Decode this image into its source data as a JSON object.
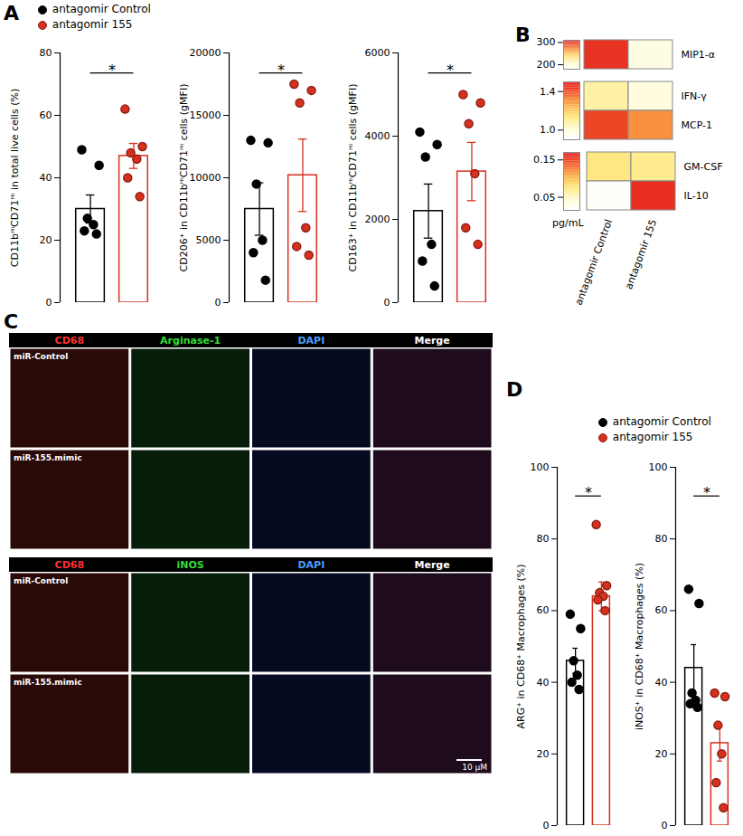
{
  "panel_labels": [
    "A",
    "B",
    "C",
    "D"
  ],
  "chart_data": [
    {
      "type": "bar",
      "ylabel": "CD11bᴴⁱCD71ᴴⁱ in total live cells (%)",
      "ylim": [
        0,
        80
      ],
      "yticks": [
        0,
        20,
        40,
        60,
        80
      ],
      "annotation": "*",
      "legend": "top-left",
      "series": [
        {
          "name": "antagomir Control",
          "color": "#000000",
          "values": [
            30
          ],
          "error": [
            4.5
          ],
          "points": [
            49,
            44,
            27,
            25,
            23,
            22
          ]
        },
        {
          "name": "antagomir 155",
          "color": "#d7301f",
          "values": [
            47
          ],
          "error": [
            4
          ],
          "points": [
            62,
            50,
            48,
            46,
            40,
            34
          ]
        }
      ]
    },
    {
      "type": "bar",
      "ylabel": "CD206⁺ in CD11bᴴⁱCD71ᴴⁱ cells (gMFI)",
      "ylim": [
        0,
        20000
      ],
      "yticks": [
        0,
        5000,
        10000,
        15000,
        20000
      ],
      "annotation": "*",
      "series": [
        {
          "name": "antagomir Control",
          "color": "#000000",
          "values": [
            7500
          ],
          "error": [
            2100
          ],
          "points": [
            13000,
            12800,
            9500,
            5000,
            4000,
            1800
          ]
        },
        {
          "name": "antagomir 155",
          "color": "#d7301f",
          "values": [
            10200
          ],
          "error": [
            2900
          ],
          "points": [
            17500,
            17000,
            16000,
            6000,
            4500,
            3800
          ]
        }
      ]
    },
    {
      "type": "bar",
      "ylabel": "CD163⁺ in CD11bᴴⁱCD71ᴴⁱ cells (gMFI)",
      "ylim": [
        0,
        6000
      ],
      "yticks": [
        0,
        2000,
        4000,
        6000
      ],
      "annotation": "*",
      "series": [
        {
          "name": "antagomir Control",
          "color": "#000000",
          "values": [
            2200
          ],
          "error": [
            650
          ],
          "points": [
            4100,
            3800,
            3500,
            1400,
            1000,
            400
          ]
        },
        {
          "name": "antagomir 155",
          "color": "#d7301f",
          "values": [
            3150
          ],
          "error": [
            700
          ],
          "points": [
            5000,
            4800,
            4300,
            3100,
            1800,
            1400
          ]
        }
      ]
    },
    {
      "type": "heatmap",
      "columns": [
        "antagomir Control",
        "antagomir 155"
      ],
      "unit": "pg/mL",
      "groups": [
        {
          "rows": [
            "MIP1-α"
          ],
          "values": [
            [
              300,
              195
            ]
          ],
          "color_range": [
            180,
            310
          ],
          "color_ticks": [
            200,
            300
          ]
        },
        {
          "rows": [
            "IFN-γ",
            "MCP-1"
          ],
          "values": [
            [
              1.08,
              0.98
            ],
            [
              1.42,
              1.3
            ]
          ],
          "color_range": [
            0.9,
            1.5
          ],
          "color_ticks": [
            {
              "value": 1,
              "label": "1.0"
            },
            1.4
          ]
        },
        {
          "rows": [
            "GM-CSF",
            "IL-10"
          ],
          "values": [
            [
              0.075,
              0.07
            ],
            [
              0.02,
              0.16
            ]
          ],
          "color_range": [
            0.015,
            0.17
          ],
          "color_ticks": [
            0.05,
            0.15
          ]
        }
      ]
    },
    {
      "type": "bar",
      "ylabel": "ARG⁺ in CD68⁺ Macrophages (%)",
      "ylim": [
        0,
        100
      ],
      "yticks": [
        0,
        20,
        40,
        60,
        80,
        100
      ],
      "annotation": "*",
      "legend": "top-left",
      "series": [
        {
          "name": "antagomir Control",
          "color": "#000000",
          "values": [
            46
          ],
          "error": [
            3.5
          ],
          "points": [
            59,
            55,
            46,
            42,
            40,
            38
          ]
        },
        {
          "name": "antagomir 155",
          "color": "#d7301f",
          "values": [
            64
          ],
          "error": [
            4
          ],
          "points": [
            84,
            67,
            65,
            64,
            63,
            60
          ]
        }
      ]
    },
    {
      "type": "bar",
      "ylabel": "iNOS⁺ in CD68⁺ Macrophages (%)",
      "ylim": [
        0,
        100
      ],
      "yticks": [
        0,
        20,
        40,
        60,
        80,
        100
      ],
      "annotation": "*",
      "series": [
        {
          "name": "antagomir Control",
          "color": "#000000",
          "values": [
            44
          ],
          "error": [
            6.5
          ],
          "points": [
            66,
            62,
            37,
            35,
            34,
            33
          ]
        },
        {
          "name": "antagomir 155",
          "color": "#d7301f",
          "values": [
            23
          ],
          "error": [
            5
          ],
          "points": [
            37,
            36,
            28,
            20,
            12,
            5
          ]
        }
      ]
    }
  ],
  "images": {
    "blocks": [
      {
        "columns": [
          "CD68",
          "Arginase-1",
          "DAPI",
          "Merge"
        ],
        "rows": [
          "miR-Control",
          "miR-155.mimic"
        ]
      },
      {
        "columns": [
          "CD68",
          "iNOS",
          "DAPI",
          "Merge"
        ],
        "rows": [
          "miR-Control",
          "miR-155.mimic"
        ]
      }
    ],
    "scale_bar": "10 μM"
  }
}
